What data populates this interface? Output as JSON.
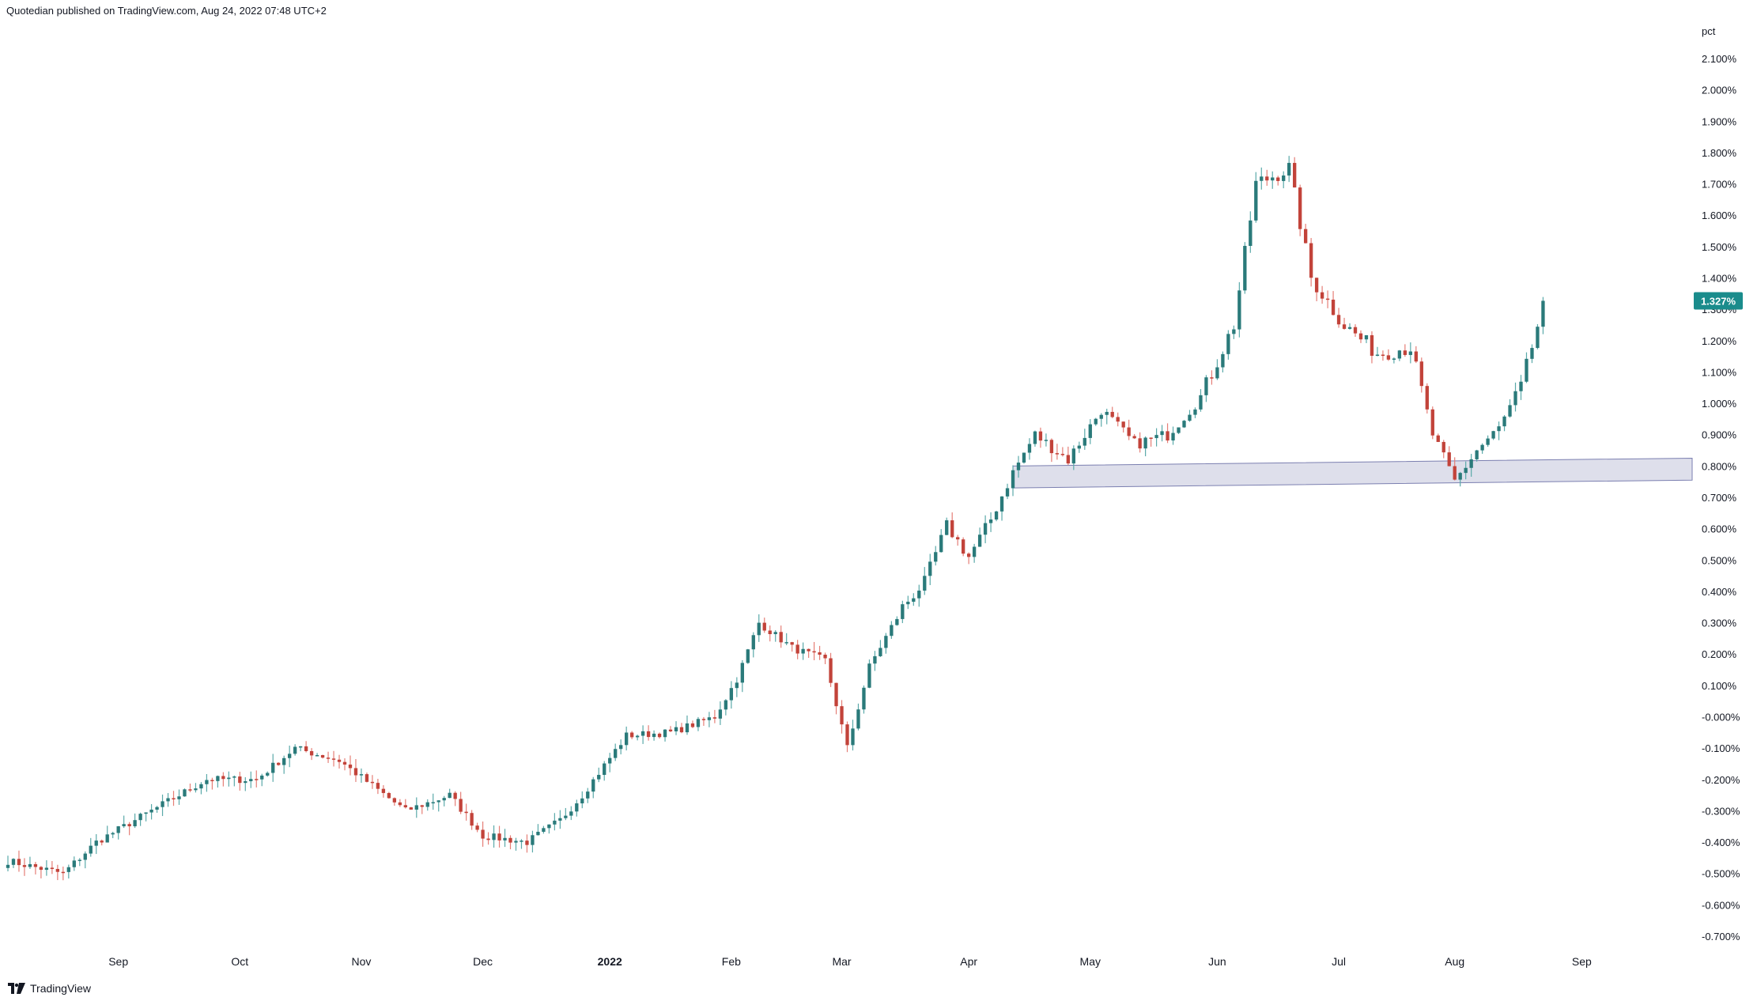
{
  "header": {
    "publisher_text": "Quotedian published on TradingView.com, Aug 24, 2022 07:48 UTC+2"
  },
  "footer": {
    "brand": "TradingView",
    "logo_icon": "tradingview-logo-icon"
  },
  "colors": {
    "up": "#2a7a7a",
    "down": "#c2433a",
    "wick_up": "#5aa9a9",
    "wick_down": "#e57e76",
    "band_fill": "#d6d7e6",
    "band_stroke": "#7b7fb0",
    "badge": "#1a8c8c"
  },
  "chart_data": {
    "type": "candlestick",
    "unit_label": "pct",
    "y_ticks": [
      "2.100%",
      "2.000%",
      "1.900%",
      "1.800%",
      "1.700%",
      "1.600%",
      "1.500%",
      "1.400%",
      "1.300%",
      "1.200%",
      "1.100%",
      "1.000%",
      "0.900%",
      "0.800%",
      "0.700%",
      "0.600%",
      "0.500%",
      "0.400%",
      "0.300%",
      "0.200%",
      "0.100%",
      "-0.000%",
      "-0.100%",
      "-0.200%",
      "-0.300%",
      "-0.400%",
      "-0.500%",
      "-0.600%",
      "-0.700%"
    ],
    "y_tick_values": [
      2.1,
      2.0,
      1.9,
      1.8,
      1.7,
      1.6,
      1.5,
      1.4,
      1.3,
      1.2,
      1.1,
      1.0,
      0.9,
      0.8,
      0.7,
      0.6,
      0.5,
      0.4,
      0.3,
      0.2,
      0.1,
      0.0,
      -0.1,
      -0.2,
      -0.3,
      -0.4,
      -0.5,
      -0.6,
      -0.7
    ],
    "ylim": [
      -0.75,
      2.15
    ],
    "x_ticks": [
      {
        "label": "Sep",
        "bar": 20,
        "bold": false
      },
      {
        "label": "Oct",
        "bar": 42,
        "bold": false
      },
      {
        "label": "Nov",
        "bar": 64,
        "bold": false
      },
      {
        "label": "Dec",
        "bar": 86,
        "bold": false
      },
      {
        "label": "2022",
        "bar": 109,
        "bold": true
      },
      {
        "label": "Feb",
        "bar": 131,
        "bold": false
      },
      {
        "label": "Mar",
        "bar": 151,
        "bold": false
      },
      {
        "label": "Apr",
        "bar": 174,
        "bold": false
      },
      {
        "label": "May",
        "bar": 196,
        "bold": false
      },
      {
        "label": "Jun",
        "bar": 219,
        "bold": false
      },
      {
        "label": "Jul",
        "bar": 241,
        "bold": false
      },
      {
        "label": "Aug",
        "bar": 262,
        "bold": false
      },
      {
        "label": "Sep",
        "bar": 285,
        "bold": false
      }
    ],
    "bar_count_axis": 305,
    "last_price": {
      "value": 1.327,
      "label": "1.327%"
    },
    "support_zone": {
      "start_bar": 182,
      "start_low": 0.73,
      "start_high": 0.8,
      "end_low": 0.755,
      "end_high": 0.825
    },
    "key_points": [
      [
        0,
        -0.46
      ],
      [
        10,
        -0.5
      ],
      [
        16,
        -0.4
      ],
      [
        26,
        -0.3
      ],
      [
        36,
        -0.2
      ],
      [
        45,
        -0.2
      ],
      [
        52,
        -0.1
      ],
      [
        60,
        -0.14
      ],
      [
        66,
        -0.22
      ],
      [
        72,
        -0.3
      ],
      [
        80,
        -0.25
      ],
      [
        86,
        -0.38
      ],
      [
        94,
        -0.4
      ],
      [
        100,
        -0.33
      ],
      [
        104,
        -0.25
      ],
      [
        112,
        -0.06
      ],
      [
        120,
        -0.05
      ],
      [
        128,
        0.0
      ],
      [
        132,
        0.12
      ],
      [
        136,
        0.3
      ],
      [
        142,
        0.22
      ],
      [
        148,
        0.18
      ],
      [
        152,
        -0.1
      ],
      [
        156,
        0.16
      ],
      [
        162,
        0.35
      ],
      [
        166,
        0.43
      ],
      [
        170,
        0.61
      ],
      [
        174,
        0.51
      ],
      [
        178,
        0.63
      ],
      [
        182,
        0.78
      ],
      [
        186,
        0.9
      ],
      [
        192,
        0.82
      ],
      [
        198,
        0.98
      ],
      [
        204,
        0.87
      ],
      [
        210,
        0.9
      ],
      [
        216,
        1.02
      ],
      [
        222,
        1.25
      ],
      [
        226,
        1.7
      ],
      [
        232,
        1.75
      ],
      [
        236,
        1.4
      ],
      [
        242,
        1.25
      ],
      [
        248,
        1.16
      ],
      [
        254,
        1.18
      ],
      [
        258,
        0.9
      ],
      [
        262,
        0.75
      ],
      [
        266,
        0.85
      ],
      [
        270,
        0.92
      ],
      [
        274,
        1.05
      ],
      [
        278,
        1.31
      ]
    ],
    "last_bar": 278
  }
}
